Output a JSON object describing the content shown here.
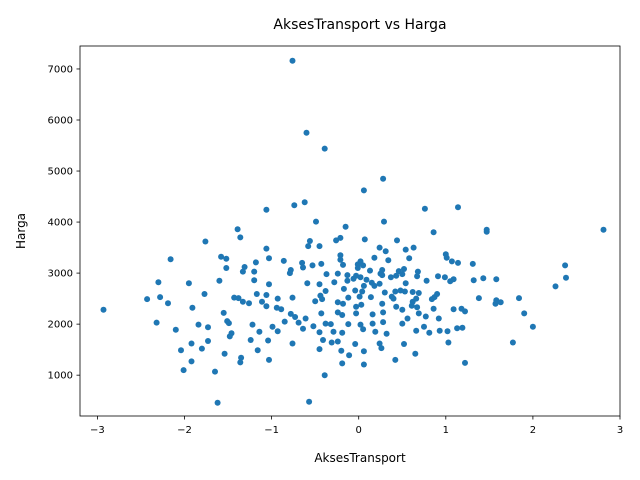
{
  "chart_data": {
    "type": "scatter",
    "title": "AksesTransport vs Harga",
    "xlabel": "AksesTransport",
    "ylabel": "Harga",
    "xlim": [
      -3.2,
      3.0
    ],
    "ylim": [
      200,
      7450
    ],
    "xticks": [
      -3,
      -2,
      -1,
      0,
      1,
      2,
      3
    ],
    "yticks": [
      1000,
      2000,
      3000,
      4000,
      5000,
      6000,
      7000
    ],
    "xtick_labels": [
      "−3",
      "−2",
      "−1",
      "0",
      "1",
      "2",
      "3"
    ],
    "ytick_labels": [
      "1000",
      "2000",
      "3000",
      "4000",
      "5000",
      "6000",
      "7000"
    ],
    "grid": false,
    "marker_color": "#1f77b4",
    "points": [
      [
        -0.76,
        7160
      ],
      [
        -0.6,
        5750
      ],
      [
        -0.39,
        5440
      ],
      [
        0.28,
        4850
      ],
      [
        0.06,
        4620
      ],
      [
        -0.62,
        4390
      ],
      [
        -0.74,
        4330
      ],
      [
        -1.06,
        4240
      ],
      [
        0.76,
        4260
      ],
      [
        1.14,
        4290
      ],
      [
        -0.49,
        4010
      ],
      [
        0.29,
        4010
      ],
      [
        -0.15,
        3910
      ],
      [
        -1.39,
        3860
      ],
      [
        1.47,
        3850
      ],
      [
        1.47,
        3810
      ],
      [
        2.81,
        3850
      ],
      [
        0.86,
        3800
      ],
      [
        -1.36,
        3700
      ],
      [
        -0.21,
        3690
      ],
      [
        0.07,
        3660
      ],
      [
        -0.56,
        3630
      ],
      [
        -1.76,
        3620
      ],
      [
        0.44,
        3640
      ],
      [
        -0.58,
        3530
      ],
      [
        -0.45,
        3530
      ],
      [
        -0.26,
        3640
      ],
      [
        0.24,
        3500
      ],
      [
        0.63,
        3500
      ],
      [
        0.54,
        3460
      ],
      [
        -1.06,
        3480
      ],
      [
        0.31,
        3430
      ],
      [
        1.0,
        3370
      ],
      [
        1.01,
        3300
      ],
      [
        1.07,
        3230
      ],
      [
        1.14,
        3200
      ],
      [
        -2.16,
        3270
      ],
      [
        -1.58,
        3320
      ],
      [
        -1.03,
        3290
      ],
      [
        -0.86,
        3240
      ],
      [
        -0.21,
        3350
      ],
      [
        -0.21,
        3260
      ],
      [
        0.02,
        3230
      ],
      [
        0.18,
        3300
      ],
      [
        0.34,
        3250
      ],
      [
        0.58,
        3290
      ],
      [
        -1.52,
        3280
      ],
      [
        -0.65,
        3200
      ],
      [
        -1.18,
        3210
      ],
      [
        -1.31,
        3120
      ],
      [
        -0.64,
        3110
      ],
      [
        -0.53,
        3150
      ],
      [
        -0.43,
        3180
      ],
      [
        -0.18,
        3160
      ],
      [
        0.05,
        3150
      ],
      [
        -0.01,
        3170
      ],
      [
        1.31,
        3180
      ],
      [
        2.37,
        3150
      ],
      [
        -1.52,
        3100
      ],
      [
        -1.33,
        3030
      ],
      [
        -1.2,
        3030
      ],
      [
        -0.78,
        3060
      ],
      [
        -0.01,
        3100
      ],
      [
        0.13,
        3050
      ],
      [
        0.27,
        3060
      ],
      [
        0.46,
        3040
      ],
      [
        0.52,
        3080
      ],
      [
        0.68,
        3030
      ],
      [
        -0.79,
        3000
      ],
      [
        -0.37,
        2980
      ],
      [
        -0.24,
        2990
      ],
      [
        -0.13,
        2960
      ],
      [
        -0.03,
        2950
      ],
      [
        -0.06,
        2890
      ],
      [
        0.02,
        2920
      ],
      [
        0.09,
        2870
      ],
      [
        0.25,
        2990
      ],
      [
        0.27,
        2960
      ],
      [
        0.37,
        2920
      ],
      [
        0.43,
        2950
      ],
      [
        0.5,
        2980
      ],
      [
        0.67,
        2940
      ],
      [
        0.99,
        2920
      ],
      [
        0.91,
        2940
      ],
      [
        1.09,
        2880
      ],
      [
        1.32,
        2860
      ],
      [
        1.43,
        2900
      ],
      [
        1.58,
        2880
      ],
      [
        2.38,
        2910
      ],
      [
        -1.6,
        2850
      ],
      [
        -1.2,
        2860
      ],
      [
        -2.3,
        2820
      ],
      [
        -1.95,
        2800
      ],
      [
        -1.03,
        2780
      ],
      [
        -0.59,
        2800
      ],
      [
        -0.45,
        2780
      ],
      [
        -0.28,
        2820
      ],
      [
        -0.13,
        2850
      ],
      [
        0.15,
        2810
      ],
      [
        0.24,
        2790
      ],
      [
        0.54,
        2800
      ],
      [
        0.78,
        2850
      ],
      [
        1.05,
        2840
      ],
      [
        0.18,
        2750
      ],
      [
        0.06,
        2750
      ],
      [
        2.26,
        2740
      ],
      [
        -0.04,
        2660
      ],
      [
        -0.17,
        2690
      ],
      [
        -0.38,
        2650
      ],
      [
        -1.77,
        2590
      ],
      [
        0.04,
        2640
      ],
      [
        0.3,
        2620
      ],
      [
        0.53,
        2640
      ],
      [
        0.62,
        2630
      ],
      [
        0.69,
        2610
      ],
      [
        0.42,
        2640
      ],
      [
        0.48,
        2660
      ],
      [
        -2.43,
        2490
      ],
      [
        -2.28,
        2530
      ],
      [
        -1.38,
        2510
      ],
      [
        -1.26,
        2410
      ],
      [
        -1.17,
        2590
      ],
      [
        -1.06,
        2570
      ],
      [
        -0.93,
        2500
      ],
      [
        -0.76,
        2520
      ],
      [
        -0.44,
        2560
      ],
      [
        -0.42,
        2490
      ],
      [
        -0.24,
        2430
      ],
      [
        -0.12,
        2520
      ],
      [
        0.01,
        2540
      ],
      [
        0.14,
        2530
      ],
      [
        0.38,
        2540
      ],
      [
        0.4,
        2500
      ],
      [
        0.62,
        2440
      ],
      [
        0.66,
        2500
      ],
      [
        0.84,
        2490
      ],
      [
        0.87,
        2530
      ],
      [
        0.9,
        2590
      ],
      [
        1.38,
        2510
      ],
      [
        1.58,
        2470
      ],
      [
        1.84,
        2510
      ],
      [
        -2.19,
        2410
      ],
      [
        -1.43,
        2520
      ],
      [
        -1.33,
        2440
      ],
      [
        -1.11,
        2440
      ],
      [
        -1.06,
        2350
      ],
      [
        -0.89,
        2290
      ],
      [
        -0.78,
        2200
      ],
      [
        -0.5,
        2450
      ],
      [
        -0.18,
        2400
      ],
      [
        -0.03,
        2340
      ],
      [
        0.03,
        2380
      ],
      [
        0.27,
        2400
      ],
      [
        0.43,
        2340
      ],
      [
        0.61,
        2360
      ],
      [
        0.67,
        2330
      ],
      [
        0.86,
        2300
      ],
      [
        1.09,
        2290
      ],
      [
        1.18,
        2300
      ],
      [
        1.57,
        2400
      ],
      [
        1.63,
        2430
      ],
      [
        1.9,
        2210
      ],
      [
        -1.91,
        2320
      ],
      [
        -1.55,
        2220
      ],
      [
        -0.94,
        2320
      ],
      [
        -0.73,
        2140
      ],
      [
        -0.61,
        2110
      ],
      [
        -0.43,
        2210
      ],
      [
        -0.24,
        2230
      ],
      [
        -0.19,
        2180
      ],
      [
        -0.03,
        2210
      ],
      [
        0.16,
        2190
      ],
      [
        0.28,
        2230
      ],
      [
        0.5,
        2280
      ],
      [
        0.56,
        2110
      ],
      [
        0.69,
        2210
      ],
      [
        0.77,
        2150
      ],
      [
        0.92,
        2110
      ],
      [
        1.22,
        2250
      ],
      [
        -2.32,
        2030
      ],
      [
        -1.84,
        1990
      ],
      [
        -1.51,
        2060
      ],
      [
        -1.49,
        2020
      ],
      [
        -1.22,
        1990
      ],
      [
        -0.99,
        1950
      ],
      [
        -0.85,
        2050
      ],
      [
        -0.69,
        2030
      ],
      [
        -0.52,
        1960
      ],
      [
        -0.38,
        2010
      ],
      [
        -0.32,
        2000
      ],
      [
        -0.12,
        2000
      ],
      [
        0.02,
        1990
      ],
      [
        0.16,
        2010
      ],
      [
        0.28,
        2040
      ],
      [
        0.5,
        2010
      ],
      [
        0.75,
        1950
      ],
      [
        0.93,
        1870
      ],
      [
        1.02,
        1860
      ],
      [
        1.13,
        1920
      ],
      [
        1.19,
        1930
      ],
      [
        2.0,
        1950
      ],
      [
        -2.1,
        1890
      ],
      [
        -1.73,
        1940
      ],
      [
        -1.46,
        1820
      ],
      [
        -1.14,
        1850
      ],
      [
        -1.04,
        1680
      ],
      [
        -0.93,
        1860
      ],
      [
        -0.64,
        1910
      ],
      [
        -0.45,
        1840
      ],
      [
        -0.29,
        1850
      ],
      [
        -0.19,
        1830
      ],
      [
        0.05,
        1900
      ],
      [
        0.19,
        1850
      ],
      [
        0.32,
        1810
      ],
      [
        0.66,
        1870
      ],
      [
        0.81,
        1830
      ],
      [
        -1.92,
        1620
      ],
      [
        -1.73,
        1670
      ],
      [
        -1.48,
        1760
      ],
      [
        -1.24,
        1690
      ],
      [
        -0.76,
        1620
      ],
      [
        -0.41,
        1690
      ],
      [
        -0.31,
        1640
      ],
      [
        -0.24,
        1660
      ],
      [
        -0.04,
        1610
      ],
      [
        0.24,
        1620
      ],
      [
        0.52,
        1610
      ],
      [
        1.03,
        1640
      ],
      [
        1.77,
        1640
      ],
      [
        -2.04,
        1490
      ],
      [
        -1.8,
        1520
      ],
      [
        -1.16,
        1490
      ],
      [
        -0.45,
        1510
      ],
      [
        -0.2,
        1480
      ],
      [
        0.06,
        1470
      ],
      [
        0.26,
        1530
      ],
      [
        0.65,
        1420
      ],
      [
        -1.54,
        1420
      ],
      [
        -1.35,
        1340
      ],
      [
        -1.03,
        1300
      ],
      [
        -0.11,
        1390
      ],
      [
        0.42,
        1300
      ],
      [
        -1.92,
        1270
      ],
      [
        -1.36,
        1250
      ],
      [
        -0.19,
        1230
      ],
      [
        0.06,
        1210
      ],
      [
        1.22,
        1240
      ],
      [
        -2.01,
        1100
      ],
      [
        -1.65,
        1070
      ],
      [
        -0.39,
        1000
      ],
      [
        -1.62,
        460
      ],
      [
        -0.57,
        480
      ],
      [
        -2.93,
        2280
      ]
    ]
  }
}
